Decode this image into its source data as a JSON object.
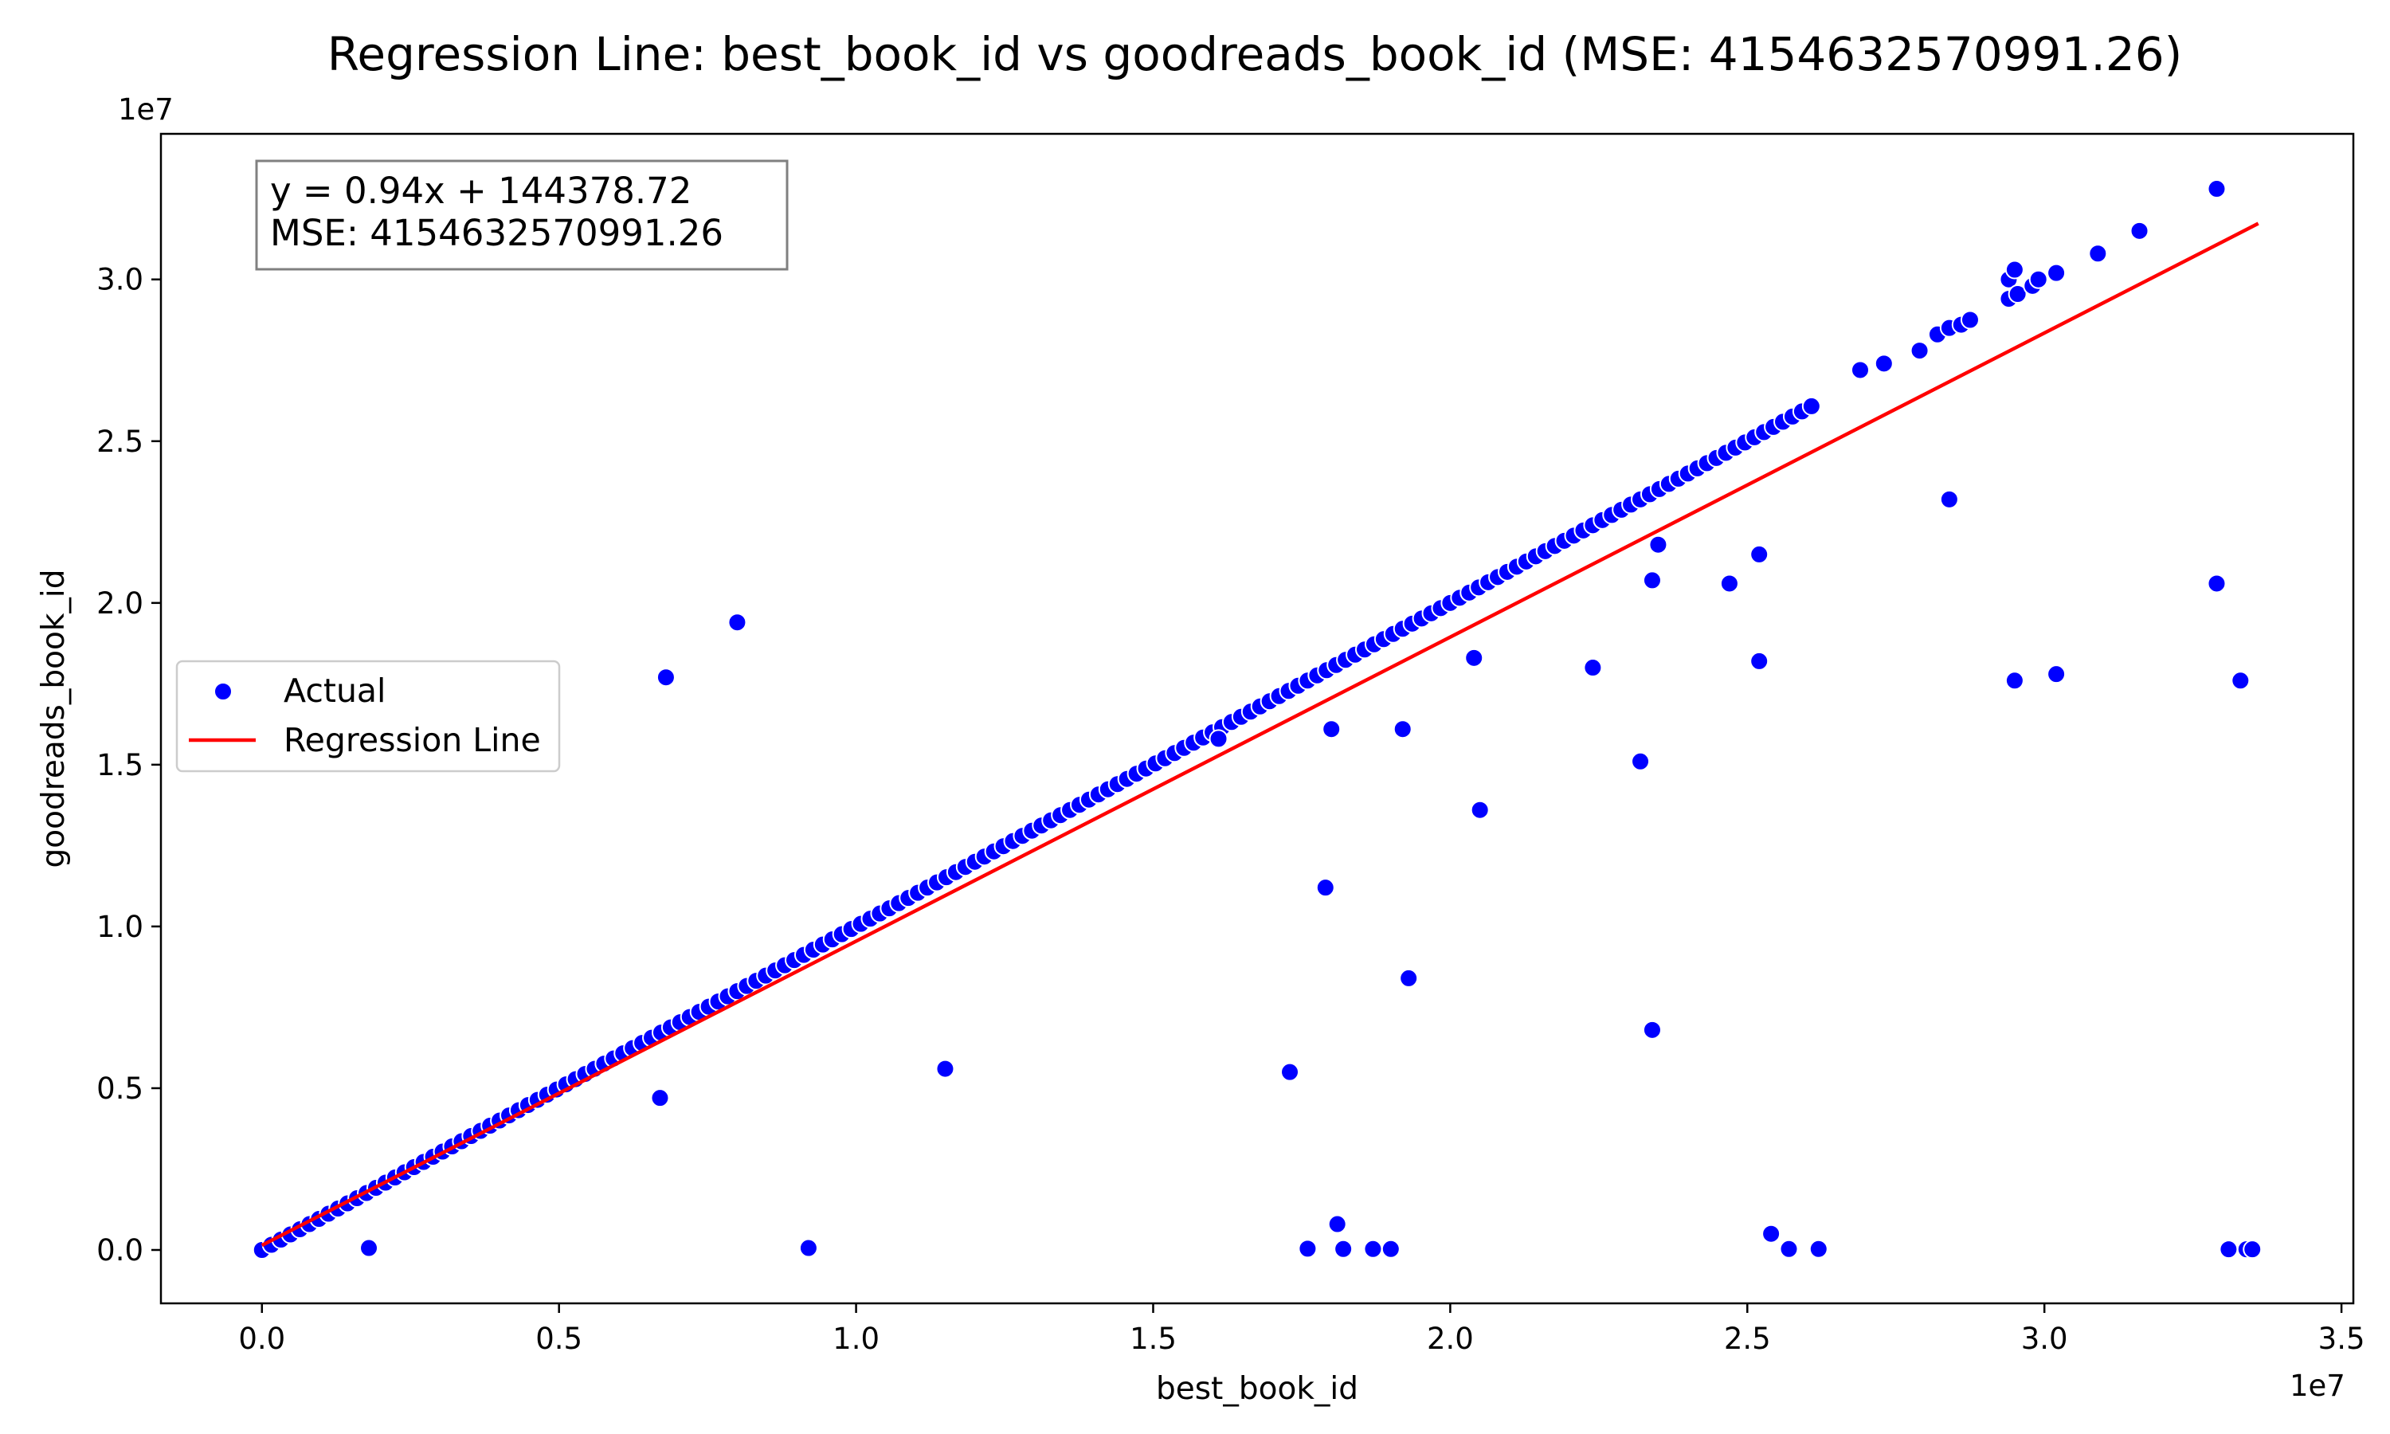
{
  "chart_data": {
    "type": "scatter",
    "title": "Regression Line: best_book_id vs goodreads_book_id (MSE: 4154632570991.26)",
    "xlabel": "best_book_id",
    "ylabel": "goodreads_book_id",
    "x_offset_label": "1e7",
    "y_offset_label": "1e7",
    "xlim": [
      -1700000,
      35200000
    ],
    "ylim": [
      -1650000,
      34500000
    ],
    "x_ticks": [
      0,
      5000000,
      10000000,
      15000000,
      20000000,
      25000000,
      30000000,
      35000000
    ],
    "x_tick_labels": [
      "0.0",
      "0.5",
      "1.0",
      "1.5",
      "2.0",
      "2.5",
      "3.0",
      "3.5"
    ],
    "y_ticks": [
      0,
      5000000,
      10000000,
      15000000,
      20000000,
      25000000,
      30000000
    ],
    "y_tick_labels": [
      "0.0",
      "0.5",
      "1.0",
      "1.5",
      "2.0",
      "2.5",
      "3.0"
    ],
    "annotation_lines": [
      "y = 0.94x + 144378.72",
      "MSE: 4154632570991.26"
    ],
    "legend": {
      "placement": "center-left",
      "entries": [
        "Actual",
        "Regression Line"
      ]
    },
    "colors": {
      "points": "#0000ff",
      "line": "#ff0000",
      "point_edge": "#ffffff"
    },
    "regression": {
      "slope": 0.94,
      "intercept": 144378.72,
      "x_range": [
        0,
        33600000
      ]
    },
    "series": [
      {
        "name": "Actual",
        "diagonal_x_start": 0,
        "diagonal_x_end": 26200000,
        "diagonal_step": 160000,
        "points": [
          [
            26900000,
            27200000
          ],
          [
            27300000,
            27400000
          ],
          [
            27900000,
            27800000
          ],
          [
            28200000,
            28300000
          ],
          [
            28400000,
            28500000
          ],
          [
            28600000,
            28600000
          ],
          [
            28750000,
            28750000
          ],
          [
            29400000,
            30000000
          ],
          [
            29500000,
            30300000
          ],
          [
            29400000,
            29400000
          ],
          [
            29550000,
            29550000
          ],
          [
            29800000,
            29800000
          ],
          [
            29900000,
            30000000
          ],
          [
            30200000,
            30200000
          ],
          [
            30900000,
            30800000
          ],
          [
            31600000,
            31500000
          ],
          [
            32900000,
            32800000
          ],
          [
            6800000,
            17700000
          ],
          [
            8000000,
            19400000
          ],
          [
            6700000,
            4700000
          ],
          [
            1800000,
            60000
          ],
          [
            9200000,
            60000
          ],
          [
            11500000,
            5600000
          ],
          [
            16100000,
            15800000
          ],
          [
            17300000,
            5500000
          ],
          [
            17600000,
            40000
          ],
          [
            18000000,
            16100000
          ],
          [
            17900000,
            11200000
          ],
          [
            18100000,
            800000
          ],
          [
            18200000,
            30000
          ],
          [
            18700000,
            30000
          ],
          [
            19000000,
            30000
          ],
          [
            19200000,
            16100000
          ],
          [
            19300000,
            8400000
          ],
          [
            20400000,
            18300000
          ],
          [
            20500000,
            13600000
          ],
          [
            22400000,
            18000000
          ],
          [
            23200000,
            15100000
          ],
          [
            23400000,
            20700000
          ],
          [
            23400000,
            6800000
          ],
          [
            23500000,
            21800000
          ],
          [
            24700000,
            20600000
          ],
          [
            25200000,
            21500000
          ],
          [
            25200000,
            18200000
          ],
          [
            25400000,
            500000
          ],
          [
            25700000,
            30000
          ],
          [
            26200000,
            30000
          ],
          [
            28400000,
            23200000
          ],
          [
            29500000,
            17600000
          ],
          [
            30200000,
            17800000
          ],
          [
            32900000,
            20600000
          ],
          [
            33300000,
            17600000
          ],
          [
            33100000,
            20000
          ],
          [
            33400000,
            20000
          ],
          [
            33500000,
            20000
          ]
        ]
      }
    ]
  }
}
